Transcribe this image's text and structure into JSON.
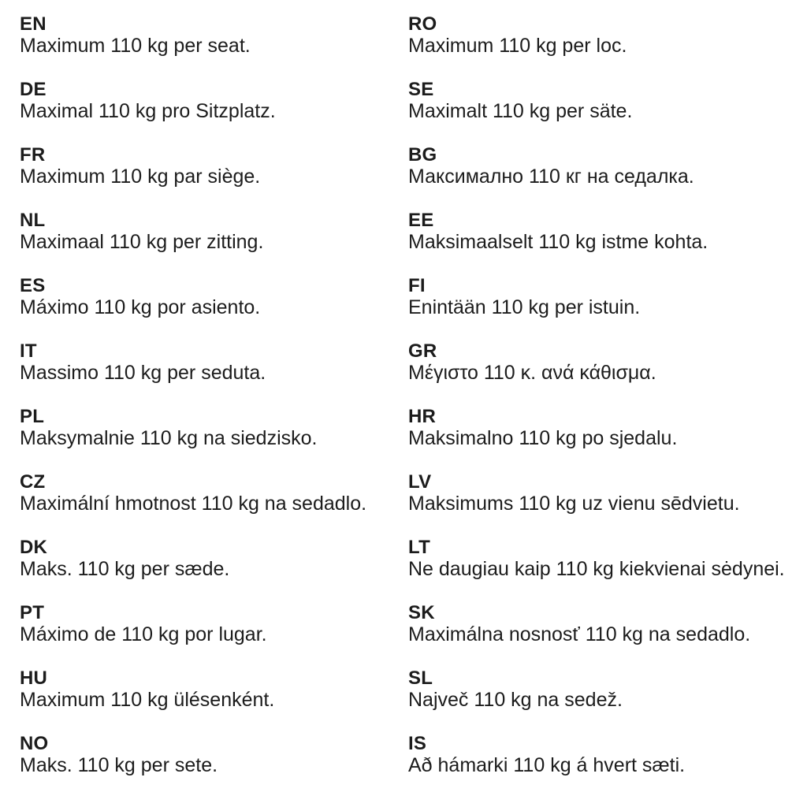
{
  "colors": {
    "text": "#1c1c1c",
    "background": "#ffffff"
  },
  "columns": [
    {
      "items": [
        {
          "code": "EN",
          "text": "Maximum 110 kg per seat."
        },
        {
          "code": "DE",
          "text": "Maximal 110 kg pro Sitzplatz."
        },
        {
          "code": "FR",
          "text": "Maximum 110 kg par siège."
        },
        {
          "code": "NL",
          "text": "Maximaal 110 kg per zitting."
        },
        {
          "code": "ES",
          "text": "Máximo 110 kg por asiento."
        },
        {
          "code": "IT",
          "text": "Massimo 110 kg per seduta."
        },
        {
          "code": "PL",
          "text": "Maksymalnie 110 kg na siedzisko."
        },
        {
          "code": "CZ",
          "text": "Maximální hmotnost 110 kg na sedadlo."
        },
        {
          "code": "DK",
          "text": "Maks. 110 kg per sæde."
        },
        {
          "code": "PT",
          "text": "Máximo de 110 kg por lugar."
        },
        {
          "code": "HU",
          "text": "Maximum 110 kg ülésenként."
        },
        {
          "code": "NO",
          "text": "Maks. 110 kg per sete."
        }
      ]
    },
    {
      "items": [
        {
          "code": "RO",
          "text": "Maximum 110 kg per loc."
        },
        {
          "code": "SE",
          "text": "Maximalt 110 kg per säte."
        },
        {
          "code": "BG",
          "text": "Максимално 110 кг на седалка."
        },
        {
          "code": "EE",
          "text": "Maksimaalselt 110 kg istme kohta."
        },
        {
          "code": "FI",
          "text": "Enintään 110 kg per istuin."
        },
        {
          "code": "GR",
          "text": "Μέγιστο 110 κ. ανά κάθισμα."
        },
        {
          "code": "HR",
          "text": "Maksimalno 110 kg po sjedalu."
        },
        {
          "code": "LV",
          "text": "Maksimums 110 kg uz vienu sēdvietu."
        },
        {
          "code": "LT",
          "text": "Ne daugiau kaip 110 kg kiekvienai sėdynei."
        },
        {
          "code": "SK",
          "text": "Maximálna nosnosť 110 kg na sedadlo."
        },
        {
          "code": "SL",
          "text": "Največ 110 kg na sedež."
        },
        {
          "code": "IS",
          "text": "Að hámarki 110 kg á hvert sæti."
        }
      ]
    }
  ]
}
